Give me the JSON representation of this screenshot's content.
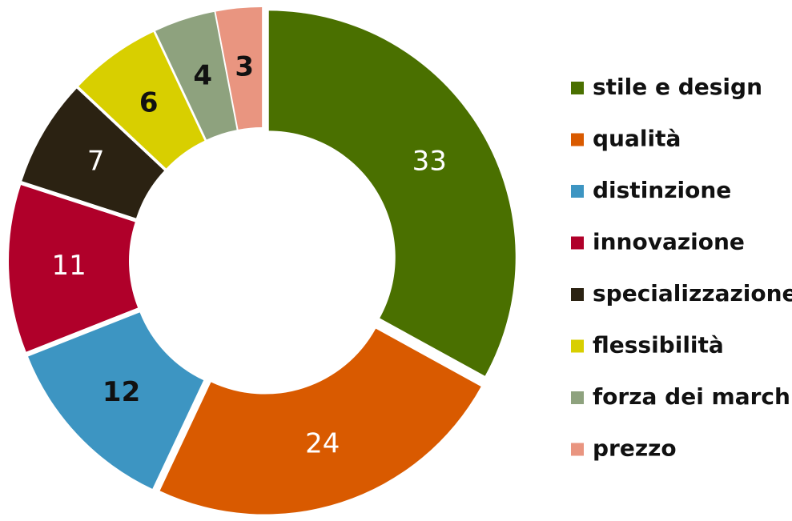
{
  "chart_data": {
    "type": "donut",
    "categories": [
      "stile e design",
      "qualità",
      "distinzione",
      "innovazione",
      "specializzazione",
      "flessibilità",
      "forza dei marchi",
      "prezzo"
    ],
    "values": [
      33,
      24,
      12,
      11,
      7,
      6,
      4,
      3
    ],
    "colors": [
      "#4a7000",
      "#d95a00",
      "#3d95c2",
      "#b0002a",
      "#2b2212",
      "#d8cf00",
      "#8ea27e",
      "#e99580"
    ],
    "legend": "right"
  }
}
